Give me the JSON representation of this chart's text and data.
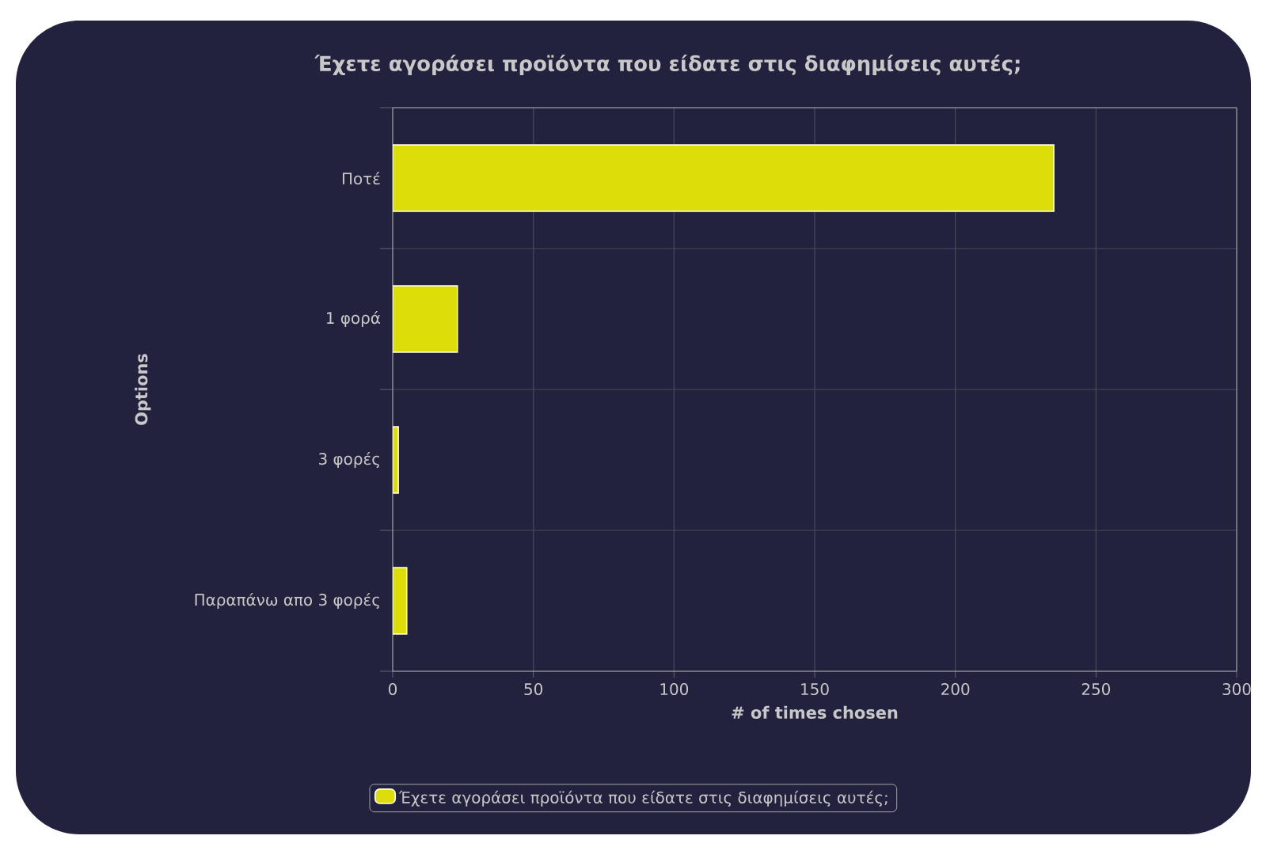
{
  "chart_data": {
    "type": "bar",
    "orientation": "horizontal",
    "title": "Έχετε αγοράσει προϊόντα που είδατε στις διαφημίσεις αυτές;",
    "xlabel": "# of times chosen",
    "ylabel": "Options",
    "categories": [
      "Ποτέ",
      "1 φορά",
      "3 φορές",
      "Παραπάνω απο 3 φορές"
    ],
    "series": [
      {
        "name": "Έχετε αγοράσει προϊόντα που είδατε στις διαφημίσεις αυτές;",
        "color": "#dddd0a",
        "values": [
          235,
          23,
          2,
          5
        ]
      }
    ],
    "xlim": [
      0,
      300
    ],
    "xticks": [
      0,
      50,
      100,
      150,
      200,
      250,
      300
    ],
    "grid": true,
    "legend": "bottom"
  }
}
